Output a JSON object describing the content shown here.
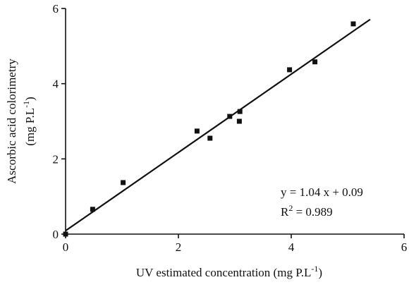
{
  "chart_data": {
    "type": "scatter",
    "x": [
      0,
      0.48,
      1.02,
      2.33,
      2.56,
      2.91,
      3.09,
      3.08,
      3.97,
      4.42,
      5.1
    ],
    "values": [
      0,
      0.66,
      1.37,
      2.74,
      2.55,
      3.13,
      3.26,
      3.0,
      4.37,
      4.58,
      5.59
    ],
    "color": "#111111",
    "fit_line": {
      "x": [
        0,
        5.4
      ],
      "y": [
        0.09,
        5.71
      ]
    },
    "xlim": [
      0,
      6
    ],
    "ylim": [
      0,
      6
    ],
    "xticks": [
      0,
      2,
      4,
      6
    ],
    "yticks": [
      0,
      2,
      4,
      6
    ],
    "xlabel": {
      "text": "UV estimated concentration (mg P.L",
      "sup": "-1",
      "tail": ")"
    },
    "ylabel": {
      "line1": "Ascorbic acid colorimetry",
      "text": "(mg P.L",
      "sup": "-1",
      "tail": ")"
    },
    "annotations": {
      "equation": "y = 1.04 x + 0.09",
      "r": "R",
      "r_sup": "2",
      "r_value": " = 0.989"
    }
  }
}
